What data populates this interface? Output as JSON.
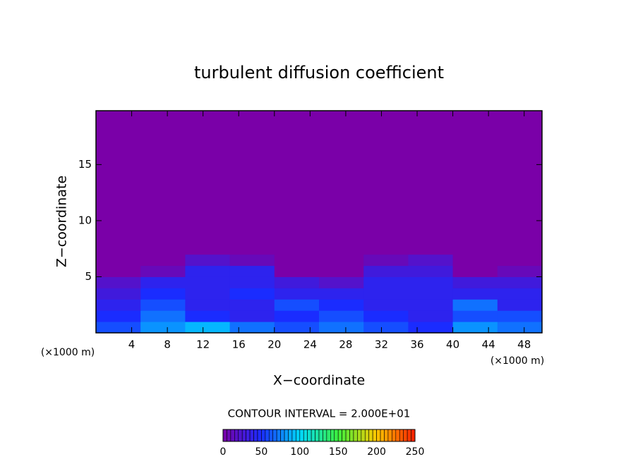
{
  "chart_data": {
    "type": "contour",
    "title": "turbulent diffusion coefficient",
    "x_label": "X−coordinate",
    "y_label": "Z−coordinate",
    "x_unit": "(×1000 m)",
    "y_unit": "(×1000 m)",
    "note": "CONTOUR INTERVAL = 2.000E+01",
    "xlim": [
      0,
      50
    ],
    "ylim": [
      0,
      19.8
    ],
    "xticks": [
      4,
      8,
      12,
      16,
      20,
      24,
      28,
      32,
      36,
      40,
      44,
      48
    ],
    "yticks": [
      5,
      10,
      15
    ],
    "x_edges": [
      0,
      5,
      10,
      15,
      20,
      25,
      30,
      35,
      40,
      45,
      50
    ],
    "z_edges": [
      0,
      1,
      2,
      3,
      4,
      5,
      6,
      7,
      19.8
    ],
    "values": [
      [
        60,
        80,
        90,
        70,
        60,
        70,
        60,
        50,
        80,
        70
      ],
      [
        50,
        70,
        50,
        40,
        50,
        60,
        50,
        40,
        60,
        60
      ],
      [
        40,
        60,
        40,
        40,
        60,
        50,
        40,
        40,
        70,
        40
      ],
      [
        30,
        50,
        40,
        50,
        40,
        40,
        40,
        40,
        40,
        40
      ],
      [
        20,
        40,
        40,
        40,
        30,
        20,
        40,
        40,
        30,
        30
      ],
      [
        0,
        10,
        40,
        40,
        0,
        0,
        30,
        30,
        0,
        10
      ],
      [
        0,
        0,
        20,
        10,
        0,
        0,
        10,
        20,
        0,
        0
      ],
      [
        0,
        0,
        0,
        0,
        0,
        0,
        0,
        0,
        0,
        0
      ]
    ],
    "clim": [
      0,
      250
    ],
    "colorbar_ticks": [
      0,
      50,
      100,
      150,
      200,
      250
    ],
    "colormap": [
      "#7a00a8",
      "#1a2cff",
      "#00d8ff",
      "#3cf03c",
      "#ffc800",
      "#ff1e00"
    ]
  }
}
